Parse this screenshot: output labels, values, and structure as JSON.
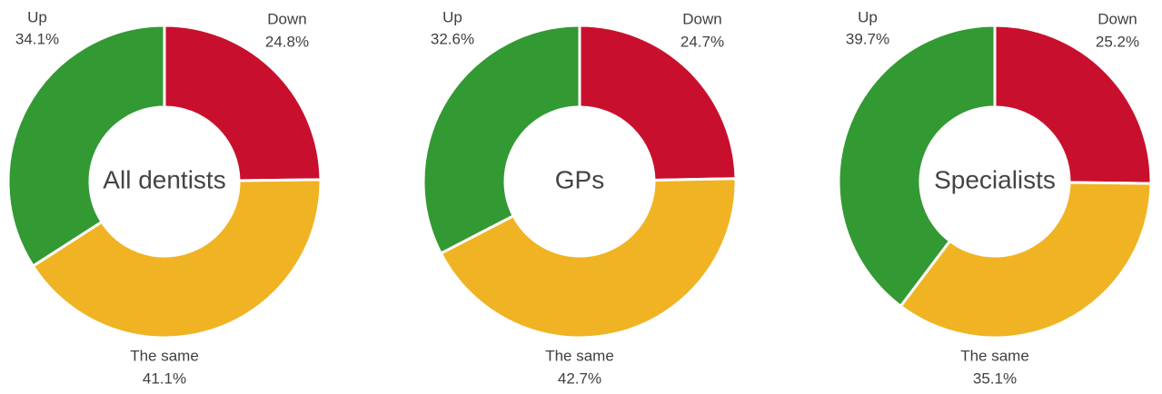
{
  "chart_data": [
    {
      "type": "pie",
      "title": "All dentists",
      "categories": [
        "Down",
        "The same",
        "Up"
      ],
      "values": [
        24.8,
        41.1,
        34.1
      ],
      "value_labels": [
        "24.8%",
        "41.1%",
        "34.1%"
      ],
      "colors": [
        "#c8102e",
        "#f0b323",
        "#339933"
      ]
    },
    {
      "type": "pie",
      "title": "GPs",
      "categories": [
        "Down",
        "The same",
        "Up"
      ],
      "values": [
        24.7,
        42.7,
        32.6
      ],
      "value_labels": [
        "24.7%",
        "42.7%",
        "32.6%"
      ],
      "colors": [
        "#c8102e",
        "#f0b323",
        "#339933"
      ]
    },
    {
      "type": "pie",
      "title": "Specialists",
      "categories": [
        "Down",
        "The same",
        "Up"
      ],
      "values": [
        25.2,
        35.1,
        39.7
      ],
      "value_labels": [
        "25.2%",
        "35.1%",
        "39.7%"
      ],
      "colors": [
        "#c8102e",
        "#f0b323",
        "#339933"
      ]
    }
  ]
}
